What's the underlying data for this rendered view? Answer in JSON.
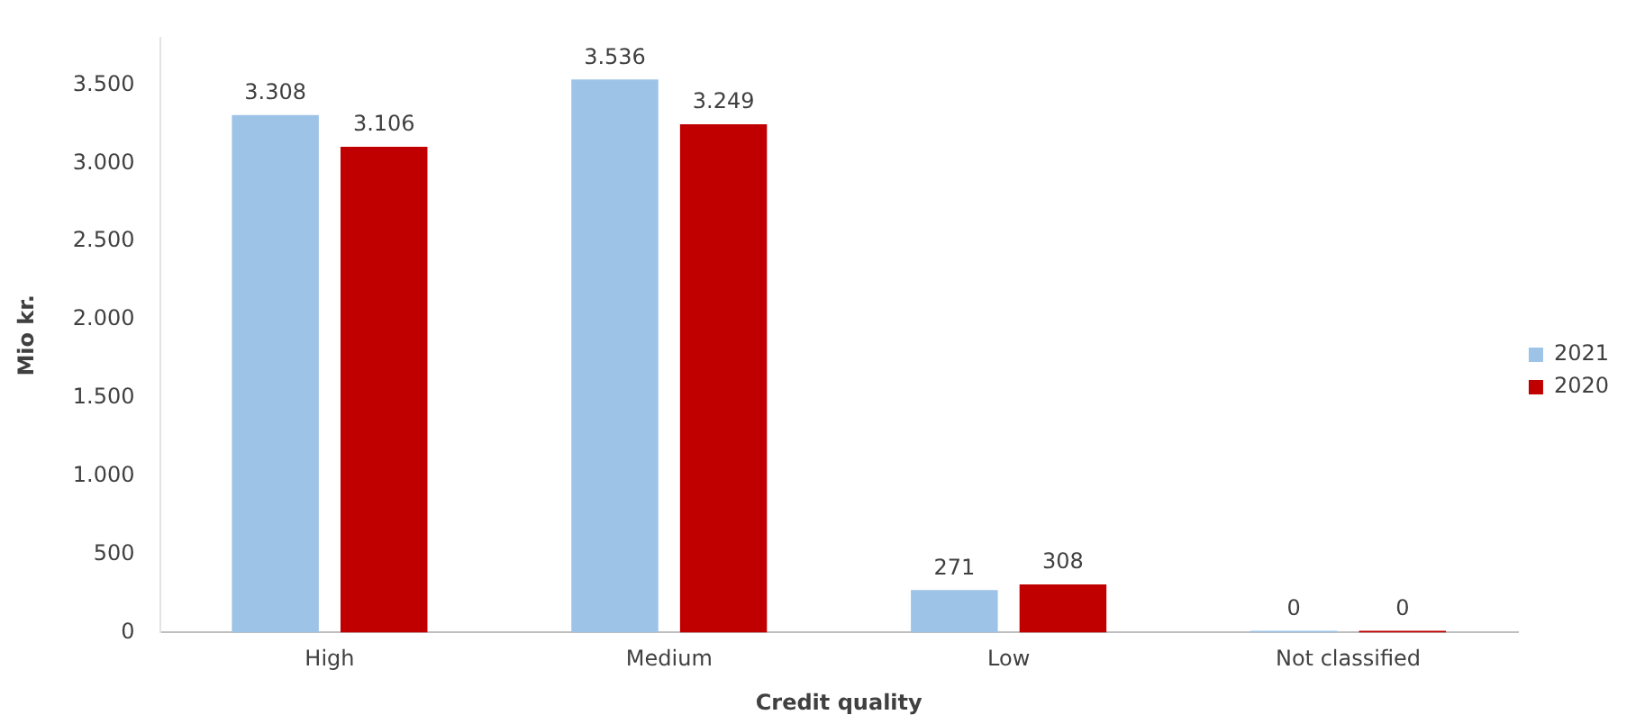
{
  "chart_data": {
    "type": "bar",
    "xlabel": "Credit quality",
    "ylabel": "Mio kr.",
    "categories": [
      "High",
      "Medium",
      "Low",
      "Not classified"
    ],
    "series": [
      {
        "name": "2021",
        "color": "#9dc3e6",
        "values": [
          3308,
          3536,
          271,
          0
        ],
        "value_labels": [
          "3.308",
          "3.536",
          "271",
          "0"
        ]
      },
      {
        "name": "2020",
        "color": "#c00000",
        "values": [
          3106,
          3249,
          308,
          0
        ],
        "value_labels": [
          "3.106",
          "3.249",
          "308",
          "0"
        ]
      }
    ],
    "yticks": [
      {
        "value": 0,
        "label": "0"
      },
      {
        "value": 500,
        "label": "500"
      },
      {
        "value": 1000,
        "label": "1.000"
      },
      {
        "value": 1500,
        "label": "1.500"
      },
      {
        "value": 2000,
        "label": "2.000"
      },
      {
        "value": 2500,
        "label": "2.500"
      },
      {
        "value": 3000,
        "label": "3.000"
      },
      {
        "value": 3500,
        "label": "3.500"
      }
    ],
    "ylim": [
      0,
      3800
    ],
    "grid": false,
    "legend": "right"
  }
}
